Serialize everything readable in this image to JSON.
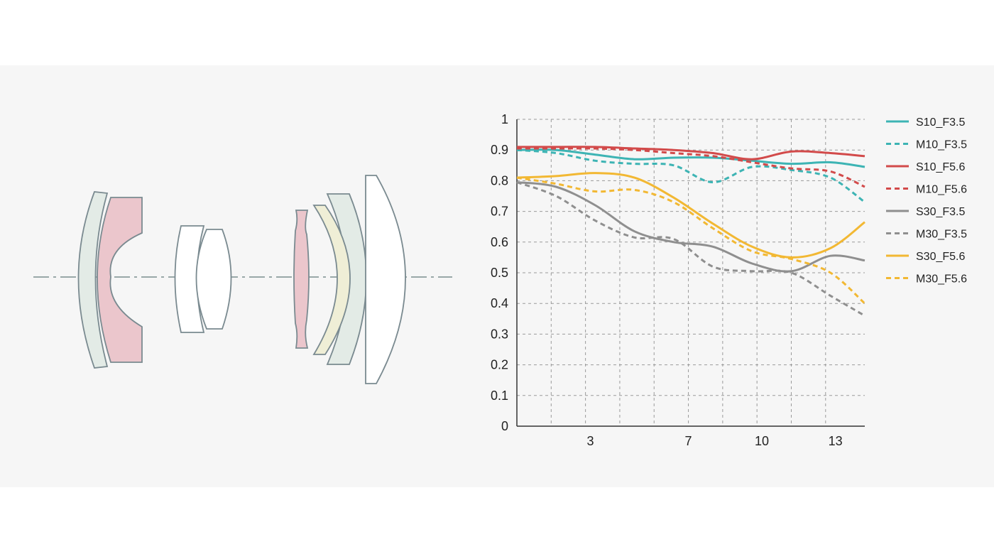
{
  "chart_data": {
    "type": "line",
    "title": "",
    "xlabel": "",
    "ylabel": "",
    "xlim": [
      0,
      14.2
    ],
    "ylim": [
      0,
      1
    ],
    "x_ticks": [
      3,
      7,
      10,
      13
    ],
    "y_ticks": [
      {
        "value": 0,
        "label": "0"
      },
      {
        "value": 0.1,
        "label": "0.1"
      },
      {
        "value": 0.2,
        "label": "0.2"
      },
      {
        "value": 0.3,
        "label": "0.3"
      },
      {
        "value": 0.4,
        "label": "0.4"
      },
      {
        "value": 0.5,
        "label": "0.5"
      },
      {
        "value": 0.6,
        "label": "0.6"
      },
      {
        "value": 0.7,
        "label": "0.7"
      },
      {
        "value": 0.8,
        "label": "0.8"
      },
      {
        "value": 0.9,
        "label": "0.9"
      },
      {
        "value": 1,
        "label": "1"
      }
    ],
    "grid": true,
    "grid_style": "dashed",
    "legend_position": "right",
    "x": [
      0,
      1.6,
      3.2,
      4.8,
      6.4,
      8.0,
      9.6,
      11.2,
      12.8,
      14.2
    ],
    "series": [
      {
        "name": "S10_F3.5",
        "color": "#3db4b4",
        "dash": false,
        "values": [
          0.9,
          0.9,
          0.885,
          0.87,
          0.875,
          0.875,
          0.865,
          0.855,
          0.86,
          0.845
        ]
      },
      {
        "name": "M10_F3.5",
        "color": "#3db4b4",
        "dash": true,
        "values": [
          0.9,
          0.89,
          0.865,
          0.855,
          0.85,
          0.795,
          0.845,
          0.835,
          0.81,
          0.73
        ]
      },
      {
        "name": "S10_F5.6",
        "color": "#d24a4a",
        "dash": false,
        "values": [
          0.91,
          0.91,
          0.91,
          0.905,
          0.9,
          0.89,
          0.87,
          0.895,
          0.89,
          0.88
        ]
      },
      {
        "name": "M10_F5.6",
        "color": "#d24a4a",
        "dash": true,
        "values": [
          0.905,
          0.905,
          0.905,
          0.9,
          0.89,
          0.88,
          0.86,
          0.84,
          0.83,
          0.78
        ]
      },
      {
        "name": "S30_F3.5",
        "color": "#8f8f8f",
        "dash": false,
        "values": [
          0.795,
          0.78,
          0.72,
          0.635,
          0.6,
          0.585,
          0.53,
          0.505,
          0.555,
          0.54
        ]
      },
      {
        "name": "M30_F3.5",
        "color": "#8f8f8f",
        "dash": true,
        "values": [
          0.795,
          0.75,
          0.67,
          0.615,
          0.61,
          0.52,
          0.505,
          0.5,
          0.425,
          0.36
        ]
      },
      {
        "name": "S30_F5.6",
        "color": "#f2b833",
        "dash": false,
        "values": [
          0.81,
          0.815,
          0.825,
          0.81,
          0.745,
          0.66,
          0.585,
          0.55,
          0.58,
          0.665
        ]
      },
      {
        "name": "M30_F5.6",
        "color": "#f2b833",
        "dash": true,
        "values": [
          0.81,
          0.79,
          0.765,
          0.77,
          0.73,
          0.645,
          0.57,
          0.545,
          0.5,
          0.4
        ]
      }
    ]
  },
  "lens_diagram": {
    "colors": {
      "green_tint": "#e3ebe6",
      "pink_tint": "#ebc6cc",
      "white": "#ffffff",
      "yellow_tint": "#efeed6",
      "stroke": "#7a8a90",
      "axis": "#98a8a8"
    }
  },
  "style": {
    "background": "#ffffff",
    "band": "#f6f6f6",
    "grid_color": "#9a9a9a",
    "axis_color": "#333333"
  }
}
